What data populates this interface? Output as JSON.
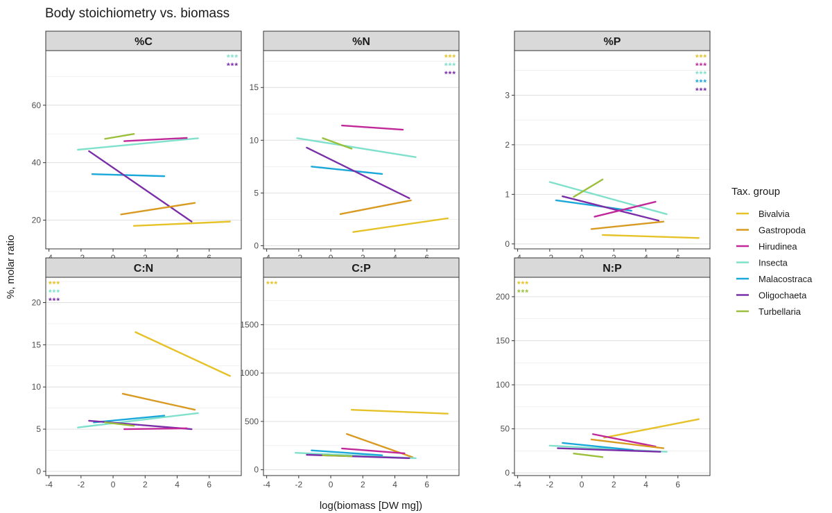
{
  "title": "Body stoichiometry vs. biomass",
  "ylabel": "%, molar ratio",
  "xlabel": "log(biomass [DW mg])",
  "legend": {
    "title": "Tax. group",
    "placement": "right",
    "groups": [
      {
        "name": "Bivalvia",
        "color": "#e6c229"
      },
      {
        "name": "Gastropoda",
        "color": "#d99a22"
      },
      {
        "name": "Hirudinea",
        "color": "#c0289a"
      },
      {
        "name": "Insecta",
        "color": "#7fe0cc"
      },
      {
        "name": "Malacostraca",
        "color": "#1aa7d9"
      },
      {
        "name": "Oligochaeta",
        "color": "#7a2ea8"
      },
      {
        "name": "Turbellaria",
        "color": "#9bbf3a"
      }
    ]
  },
  "chart_data": [
    {
      "type": "scatter",
      "facet": "%C",
      "xlim": [
        -4.2,
        8
      ],
      "ylim": [
        10,
        79
      ],
      "xticks": [
        -4,
        -2,
        0,
        2,
        4,
        6
      ],
      "yticks": [
        20,
        40,
        60
      ],
      "grid": true,
      "significance": [
        "Insecta",
        "Oligochaeta"
      ],
      "fits": [
        {
          "group": "Insecta",
          "x": [
            -2.2,
            5.3
          ],
          "y": [
            44.5,
            48.5
          ]
        },
        {
          "group": "Hirudinea",
          "x": [
            0.7,
            4.6
          ],
          "y": [
            47.5,
            48.6
          ]
        },
        {
          "group": "Turbellaria",
          "x": [
            -0.5,
            1.3
          ],
          "y": [
            48.3,
            50.0
          ]
        },
        {
          "group": "Malacostraca",
          "x": [
            -1.3,
            3.2
          ],
          "y": [
            36.0,
            35.3
          ]
        },
        {
          "group": "Oligochaeta",
          "x": [
            -1.5,
            4.9
          ],
          "y": [
            44.0,
            19.5
          ]
        },
        {
          "group": "Gastropoda",
          "x": [
            0.5,
            5.1
          ],
          "y": [
            22.0,
            26.0
          ]
        },
        {
          "group": "Bivalvia",
          "x": [
            1.3,
            7.3
          ],
          "y": [
            18.0,
            19.5
          ]
        }
      ]
    },
    {
      "type": "scatter",
      "facet": "%N",
      "xlim": [
        -4.2,
        8
      ],
      "ylim": [
        -0.3,
        18.5
      ],
      "xticks": [
        -4,
        -2,
        0,
        2,
        4,
        6
      ],
      "yticks": [
        0,
        5,
        10,
        15
      ],
      "grid": true,
      "significance": [
        "Bivalvia",
        "Insecta",
        "Oligochaeta"
      ],
      "fits": [
        {
          "group": "Insecta",
          "x": [
            -2.1,
            5.3
          ],
          "y": [
            10.2,
            8.4
          ]
        },
        {
          "group": "Hirudinea",
          "x": [
            0.7,
            4.5
          ],
          "y": [
            11.4,
            11.0
          ]
        },
        {
          "group": "Turbellaria",
          "x": [
            -0.5,
            1.3
          ],
          "y": [
            10.2,
            9.2
          ]
        },
        {
          "group": "Malacostraca",
          "x": [
            -1.2,
            3.2
          ],
          "y": [
            7.5,
            6.8
          ]
        },
        {
          "group": "Oligochaeta",
          "x": [
            -1.5,
            4.9
          ],
          "y": [
            9.3,
            4.5
          ]
        },
        {
          "group": "Gastropoda",
          "x": [
            0.6,
            5.0
          ],
          "y": [
            3.0,
            4.3
          ]
        },
        {
          "group": "Bivalvia",
          "x": [
            1.4,
            7.3
          ],
          "y": [
            1.3,
            2.6
          ]
        }
      ]
    },
    {
      "type": "scatter",
      "facet": "%P",
      "xlim": [
        -4.2,
        8
      ],
      "ylim": [
        -0.1,
        3.9
      ],
      "xticks": [
        -4,
        -2,
        0,
        2,
        4,
        6
      ],
      "yticks": [
        0,
        1,
        2,
        3
      ],
      "grid": true,
      "significance": [
        "Bivalvia",
        "Hirudinea",
        "Insecta",
        "Malacostraca",
        "Oligochaeta"
      ],
      "fits": [
        {
          "group": "Insecta",
          "x": [
            -2.0,
            5.3
          ],
          "y": [
            1.25,
            0.6
          ]
        },
        {
          "group": "Malacostraca",
          "x": [
            -1.6,
            3.1
          ],
          "y": [
            0.88,
            0.67
          ]
        },
        {
          "group": "Oligochaeta",
          "x": [
            -1.2,
            4.8
          ],
          "y": [
            0.96,
            0.47
          ]
        },
        {
          "group": "Turbellaria",
          "x": [
            -0.5,
            1.3
          ],
          "y": [
            0.95,
            1.3
          ]
        },
        {
          "group": "Hirudinea",
          "x": [
            0.8,
            4.6
          ],
          "y": [
            0.55,
            0.85
          ]
        },
        {
          "group": "Gastropoda",
          "x": [
            0.6,
            5.1
          ],
          "y": [
            0.3,
            0.45
          ]
        },
        {
          "group": "Bivalvia",
          "x": [
            1.3,
            7.3
          ],
          "y": [
            0.18,
            0.12
          ]
        }
      ]
    },
    {
      "type": "scatter",
      "facet": "C:N",
      "xlim": [
        -4.2,
        8
      ],
      "ylim": [
        -0.5,
        23
      ],
      "xticks": [
        -4,
        -2,
        0,
        2,
        4,
        6
      ],
      "yticks": [
        0,
        5,
        10,
        15,
        20
      ],
      "grid": true,
      "significance": [
        "Bivalvia",
        "Insecta",
        "Oligochaeta"
      ],
      "fits": [
        {
          "group": "Bivalvia",
          "x": [
            1.4,
            7.3
          ],
          "y": [
            16.5,
            11.3
          ]
        },
        {
          "group": "Gastropoda",
          "x": [
            0.6,
            5.1
          ],
          "y": [
            9.2,
            7.3
          ]
        },
        {
          "group": "Insecta",
          "x": [
            -2.2,
            5.3
          ],
          "y": [
            5.2,
            6.9
          ]
        },
        {
          "group": "Malacostraca",
          "x": [
            -1.2,
            3.2
          ],
          "y": [
            5.8,
            6.6
          ]
        },
        {
          "group": "Oligochaeta",
          "x": [
            -1.5,
            4.9
          ],
          "y": [
            6.0,
            5.0
          ]
        },
        {
          "group": "Hirudinea",
          "x": [
            0.7,
            4.6
          ],
          "y": [
            5.0,
            5.1
          ]
        },
        {
          "group": "Turbellaria",
          "x": [
            -0.5,
            1.3
          ],
          "y": [
            5.8,
            5.4
          ]
        }
      ]
    },
    {
      "type": "scatter",
      "facet": "C:P",
      "xlim": [
        -4.2,
        8
      ],
      "ylim": [
        -60,
        1990
      ],
      "xticks": [
        -4,
        -2,
        0,
        2,
        4,
        6
      ],
      "yticks": [
        0,
        500,
        1000,
        1500
      ],
      "grid": true,
      "significance": [
        "Bivalvia"
      ],
      "fits": [
        {
          "group": "Bivalvia",
          "x": [
            1.3,
            7.3
          ],
          "y": [
            620,
            580
          ]
        },
        {
          "group": "Gastropoda",
          "x": [
            1.0,
            5.1
          ],
          "y": [
            370,
            130
          ]
        },
        {
          "group": "Hirudinea",
          "x": [
            0.7,
            4.6
          ],
          "y": [
            220,
            170
          ]
        },
        {
          "group": "Insecta",
          "x": [
            -2.2,
            5.3
          ],
          "y": [
            175,
            120
          ]
        },
        {
          "group": "Malacostraca",
          "x": [
            -1.2,
            3.2
          ],
          "y": [
            200,
            150
          ]
        },
        {
          "group": "Oligochaeta",
          "x": [
            -1.5,
            4.9
          ],
          "y": [
            155,
            120
          ]
        },
        {
          "group": "Turbellaria",
          "x": [
            -0.5,
            1.3
          ],
          "y": [
            150,
            140
          ]
        }
      ]
    },
    {
      "type": "scatter",
      "facet": "N:P",
      "xlim": [
        -4.2,
        8
      ],
      "ylim": [
        -3,
        222
      ],
      "xticks": [
        -4,
        -2,
        0,
        2,
        4,
        6
      ],
      "yticks": [
        0,
        50,
        100,
        150,
        200
      ],
      "grid": true,
      "significance": [
        "Bivalvia",
        "Turbellaria"
      ],
      "fits": [
        {
          "group": "Bivalvia",
          "x": [
            1.4,
            7.3
          ],
          "y": [
            40,
            61
          ]
        },
        {
          "group": "Hirudinea",
          "x": [
            0.7,
            4.6
          ],
          "y": [
            44,
            30
          ]
        },
        {
          "group": "Gastropoda",
          "x": [
            0.6,
            5.1
          ],
          "y": [
            38,
            28
          ]
        },
        {
          "group": "Insecta",
          "x": [
            -2.0,
            5.3
          ],
          "y": [
            31,
            24
          ]
        },
        {
          "group": "Malacostraca",
          "x": [
            -1.2,
            3.2
          ],
          "y": [
            34,
            26
          ]
        },
        {
          "group": "Oligochaeta",
          "x": [
            -1.5,
            4.9
          ],
          "y": [
            28,
            24
          ]
        },
        {
          "group": "Turbellaria",
          "x": [
            -0.5,
            1.3
          ],
          "y": [
            22,
            18
          ]
        }
      ]
    }
  ]
}
